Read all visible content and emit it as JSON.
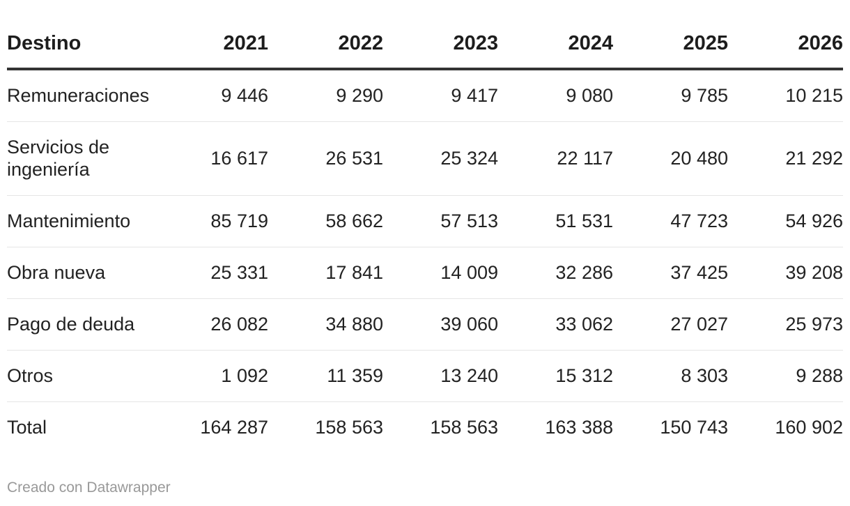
{
  "chart_data": {
    "type": "table",
    "columns": [
      "Destino",
      "2021",
      "2022",
      "2023",
      "2024",
      "2025",
      "2026"
    ],
    "rows": [
      {
        "label": "Remuneraciones",
        "values": [
          "9 446",
          "9 290",
          "9 417",
          "9 080",
          "9 785",
          "10 215"
        ]
      },
      {
        "label": "Servicios de ingeniería",
        "values": [
          "16 617",
          "26 531",
          "25 324",
          "22 117",
          "20 480",
          "21 292"
        ]
      },
      {
        "label": "Mantenimiento",
        "values": [
          "85 719",
          "58 662",
          "57 513",
          "51 531",
          "47 723",
          "54 926"
        ]
      },
      {
        "label": "Obra nueva",
        "values": [
          "25 331",
          "17 841",
          "14 009",
          "32 286",
          "37 425",
          "39 208"
        ]
      },
      {
        "label": "Pago de deuda",
        "values": [
          "26 082",
          "34 880",
          "39 060",
          "33 062",
          "27 027",
          "25 973"
        ]
      },
      {
        "label": "Otros",
        "values": [
          "1 092",
          "11 359",
          "13 240",
          "15 312",
          "8 303",
          "9 288"
        ]
      },
      {
        "label": "Total",
        "values": [
          "164 287",
          "158 563",
          "158 563",
          "163 388",
          "150 743",
          "160 902"
        ]
      }
    ]
  },
  "footer": {
    "credit": "Creado con Datawrapper"
  }
}
